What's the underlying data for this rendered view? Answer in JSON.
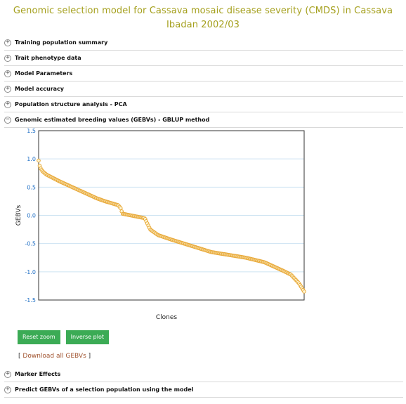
{
  "page": {
    "title": "Genomic selection model for Cassava mosaic disease severity (CMDS) in Cassava Ibadan 2002/03"
  },
  "sections_top": [
    {
      "label": "Training population summary",
      "icon": "plus-circle-icon"
    },
    {
      "label": "Trait phenotype data",
      "icon": "plus-circle-icon"
    },
    {
      "label": "Model Parameters",
      "icon": "plus-circle-icon"
    },
    {
      "label": "Model accuracy",
      "icon": "plus-circle-icon"
    },
    {
      "label": "Population structure analysis - PCA",
      "icon": "plus-circle-icon"
    },
    {
      "label": "Genomic estimated breeding values (GEBVs) - GBLUP method",
      "icon": "minus-circle-icon"
    }
  ],
  "sections_bottom": [
    {
      "label": "Marker Effects",
      "icon": "plus-circle-icon"
    },
    {
      "label": "Predict GEBVs of a selection population using the model",
      "icon": "plus-circle-icon"
    }
  ],
  "buttons": {
    "reset_zoom": "Reset zoom",
    "inverse_plot": "Inverse plot"
  },
  "download": {
    "open_bracket": "[",
    "link_text": "Download all GEBVs",
    "close_bracket": "]"
  },
  "colors": {
    "title": "#a5a01e",
    "point_stroke": "#e8a93a",
    "point_fill": "#fff7d6",
    "button": "#3bab55",
    "link": "#a0522d",
    "tick_label": "#1f6fc5"
  },
  "chart_data": {
    "type": "scatter",
    "title": "",
    "xlabel": "Clones",
    "ylabel": "GEBVs",
    "ylim": [
      -1.5,
      1.5
    ],
    "yticks": [
      "1.5",
      "1.0",
      "0.5",
      "0.0",
      "-0.5",
      "-1.0",
      "-1.5"
    ],
    "grid": true,
    "series": [
      {
        "name": "",
        "anchors_x_fraction": [
          0.0,
          0.005,
          0.015,
          0.03,
          0.08,
          0.15,
          0.22,
          0.25,
          0.3,
          0.31,
          0.315,
          0.4,
          0.41,
          0.42,
          0.45,
          0.5,
          0.65,
          0.78,
          0.85,
          0.92,
          0.95,
          0.98,
          1.0
        ],
        "anchors_y": [
          0.97,
          0.85,
          0.78,
          0.72,
          0.6,
          0.45,
          0.3,
          0.25,
          0.18,
          0.12,
          0.03,
          -0.05,
          -0.15,
          -0.25,
          -0.35,
          -0.43,
          -0.65,
          -0.75,
          -0.83,
          -0.98,
          -1.05,
          -1.2,
          -1.35
        ],
        "point_count": 260
      }
    ]
  }
}
